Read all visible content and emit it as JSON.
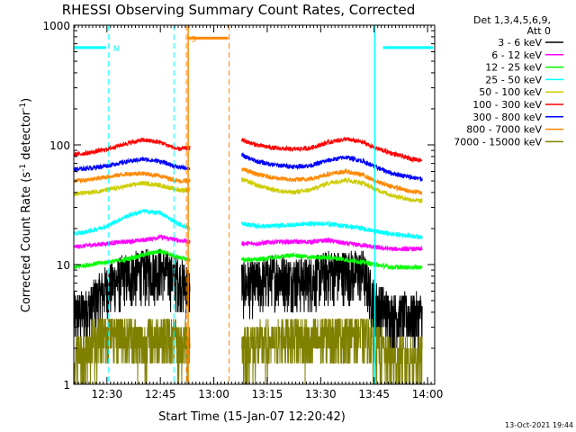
{
  "chart_data": {
    "type": "line",
    "title": "RHESSI Observing Summary Count Rates, Corrected",
    "xlabel": "Start Time (15-Jan-07 12:20:42)",
    "ylabel_parts": [
      "Corrected Count Rate (s",
      "-1",
      " detector",
      "-1",
      ")"
    ],
    "yscale": "log",
    "ylim": [
      1,
      1000
    ],
    "xlim_minutes": [
      740.7,
      842
    ],
    "xticks": [
      {
        "label": "12:30",
        "m": 750
      },
      {
        "label": "12:45",
        "m": 765
      },
      {
        "label": "13:00",
        "m": 780
      },
      {
        "label": "13:15",
        "m": 795
      },
      {
        "label": "13:30",
        "m": 810
      },
      {
        "label": "13:45",
        "m": 825
      },
      {
        "label": "14:00",
        "m": 840
      }
    ],
    "yticks": [
      {
        "label": "1",
        "v": 1
      },
      {
        "label": "10",
        "v": 10
      },
      {
        "label": "100",
        "v": 100
      },
      {
        "label": "1000",
        "v": 1000
      }
    ],
    "legend_title": [
      "Det 1,3,4,5,6,9,",
      "Att 0"
    ],
    "legend_placement": "right",
    "data_gap_minutes": [
      773.3,
      787.8
    ],
    "series": [
      {
        "name": "3 - 6 keV",
        "color": "#000000",
        "x": [
          740.7,
          745,
          750,
          755,
          760,
          765,
          770,
          773.3,
          787.8,
          792,
          797,
          802,
          807,
          812,
          817,
          822,
          825,
          830,
          835,
          838
        ],
        "y": [
          3.5,
          4,
          6,
          7.5,
          8,
          8.5,
          7,
          6,
          6.5,
          6.5,
          7.5,
          7,
          7,
          8,
          8,
          8,
          4.5,
          3.5,
          3.5,
          3.5
        ]
      },
      {
        "name": "6 - 12 keV",
        "color": "#ff00ff",
        "x": [
          740.7,
          745,
          750,
          755,
          760,
          765,
          770,
          773.3,
          787.8,
          792,
          797,
          802,
          807,
          812,
          817,
          822,
          825,
          830,
          835,
          838
        ],
        "y": [
          14,
          14.5,
          15,
          15.5,
          16,
          17,
          16,
          15.5,
          15,
          15,
          15.5,
          15.5,
          15.5,
          16,
          15,
          14.5,
          14,
          13.5,
          13.5,
          13.5
        ]
      },
      {
        "name": "12 - 25 keV",
        "color": "#00ff00",
        "x": [
          740.7,
          745,
          750,
          755,
          760,
          765,
          770,
          773.3,
          787.8,
          792,
          797,
          802,
          807,
          812,
          817,
          822,
          825,
          830,
          835,
          838
        ],
        "y": [
          9.5,
          10,
          10.5,
          11,
          12,
          13,
          11.5,
          11,
          11,
          11,
          11.5,
          12,
          11.5,
          11.5,
          11,
          10.5,
          10,
          9.5,
          9.5,
          9.5
        ]
      },
      {
        "name": "25 - 50 keV",
        "color": "#00ffff",
        "x": [
          740.7,
          745,
          750,
          755,
          760,
          765,
          770,
          773.3,
          787.8,
          792,
          797,
          802,
          807,
          812,
          817,
          822,
          825,
          830,
          835,
          838
        ],
        "y": [
          18,
          19,
          21,
          25,
          28,
          27,
          22,
          20,
          22,
          21,
          21,
          21.5,
          22,
          22,
          21,
          20,
          19,
          18,
          17.5,
          17
        ]
      },
      {
        "name": "50 - 100 keV",
        "color": "#cccc00",
        "x": [
          740.7,
          745,
          750,
          755,
          760,
          765,
          770,
          773.3,
          787.8,
          792,
          797,
          802,
          807,
          812,
          817,
          822,
          825,
          830,
          835,
          838
        ],
        "y": [
          39,
          40,
          42,
          45,
          48,
          46,
          42,
          42,
          52,
          46,
          42,
          40,
          42,
          48,
          51,
          48,
          43,
          38,
          35,
          34
        ]
      },
      {
        "name": "100 - 300 keV",
        "color": "#ff0000",
        "x": [
          740.7,
          745,
          750,
          755,
          760,
          765,
          770,
          773.3,
          787.8,
          792,
          797,
          802,
          807,
          812,
          817,
          822,
          825,
          830,
          835,
          838
        ],
        "y": [
          83,
          86,
          92,
          102,
          110,
          105,
          92,
          95,
          110,
          100,
          94,
          92,
          94,
          105,
          112,
          105,
          95,
          85,
          77,
          75
        ]
      },
      {
        "name": "300 - 800 keV",
        "color": "#0000ff",
        "x": [
          740.7,
          745,
          750,
          755,
          760,
          765,
          770,
          773.3,
          787.8,
          792,
          797,
          802,
          807,
          812,
          817,
          822,
          825,
          830,
          835,
          838
        ],
        "y": [
          62,
          64,
          67,
          72,
          76,
          73,
          65,
          64,
          82,
          73,
          68,
          66,
          67,
          74,
          79,
          73,
          66,
          58,
          54,
          52
        ]
      },
      {
        "name": "800 - 7000 keV",
        "color": "#ff8800",
        "x": [
          740.7,
          745,
          750,
          755,
          760,
          765,
          770,
          773.3,
          787.8,
          792,
          797,
          802,
          807,
          812,
          817,
          822,
          825,
          830,
          835,
          838
        ],
        "y": [
          50,
          51,
          54,
          57,
          58,
          55,
          50,
          50,
          63,
          57,
          53,
          51,
          52,
          57,
          60,
          56,
          50,
          45,
          41,
          40
        ]
      },
      {
        "name": "7000 - 15000 keV",
        "color": "#808000",
        "x": [
          740.7,
          745,
          750,
          755,
          760,
          765,
          770,
          773.3,
          787.8,
          792,
          797,
          802,
          807,
          812,
          817,
          822,
          825,
          830,
          835,
          838
        ],
        "y": [
          1.5,
          2,
          2.5,
          2.5,
          2,
          2.5,
          2,
          2,
          2,
          2,
          2,
          2.5,
          2,
          2.5,
          2.5,
          2.5,
          2,
          1.5,
          1.5,
          1.5
        ]
      }
    ],
    "annotations": [
      {
        "label": "N",
        "color": "#00ffff",
        "line_m": [
          750.5,
          768.8
        ],
        "bar_m": [
          [
            740.7,
            749.8
          ],
          [
            827.5,
            841.5
          ]
        ],
        "bar_y": 650
      },
      {
        "label": "S",
        "color": "#ff8800",
        "line_m": [
          772.3,
          784.3
        ],
        "bar_m": [
          [
            772.6,
            784.0
          ]
        ],
        "bar_y": 780
      }
    ],
    "solid_verticals": [
      {
        "m": 772.8,
        "color": "#ff8800"
      },
      {
        "m": 825.2,
        "color": "#00ffff"
      }
    ],
    "footer_date": "13-Oct-2021 19:44"
  }
}
